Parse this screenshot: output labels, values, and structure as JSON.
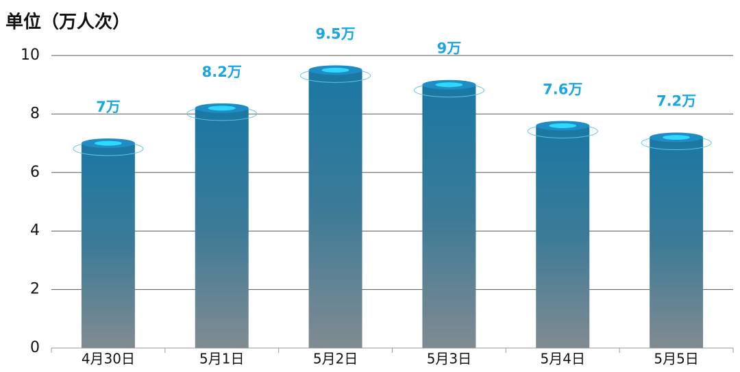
{
  "chart_data": {
    "type": "bar",
    "title": "单位（万人次）",
    "categories": [
      "4月30日",
      "5月1日",
      "5月2日",
      "5月3日",
      "5月4日",
      "5月5日"
    ],
    "values": [
      7,
      8.2,
      9.5,
      9,
      7.6,
      7.2
    ],
    "value_labels": [
      "7万",
      "8.2万",
      "9.5万",
      "9万",
      "7.6万",
      "7.2万"
    ],
    "color": "#1e7aa5",
    "ylim": [
      0,
      10
    ],
    "yticks": [
      0,
      2,
      4,
      6,
      8,
      10
    ],
    "grid": true
  }
}
